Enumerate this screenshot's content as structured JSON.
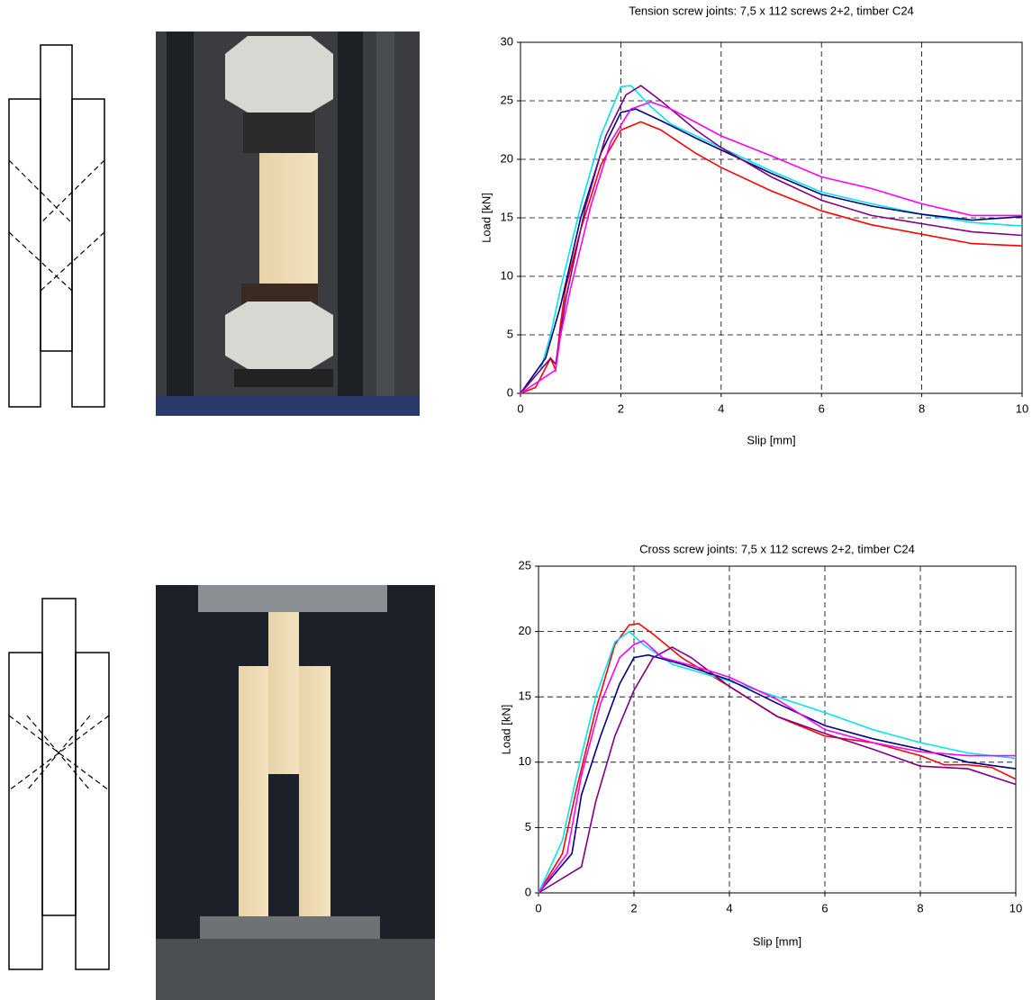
{
  "chart_data": [
    {
      "type": "line",
      "title": "Tension screw joints: 7,5 x 112 screws 2+2, timber C24",
      "x_label": "Slip [mm]",
      "y_label": "Load [kN]",
      "xlim": [
        0,
        10
      ],
      "ylim": [
        0,
        30
      ],
      "xticks": [
        0,
        2,
        4,
        6,
        8,
        10
      ],
      "yticks": [
        0,
        5,
        10,
        15,
        20,
        25,
        30
      ],
      "grid": true,
      "series": [
        {
          "color": "#ff0000",
          "x": [
            0,
            0.3,
            0.6,
            0.7,
            0.8,
            0.9,
            1.2,
            1.6,
            2,
            2.4,
            2.8,
            3.5,
            4,
            5,
            6,
            7,
            8,
            9,
            10
          ],
          "values": [
            0,
            0.5,
            3,
            2,
            6,
            9,
            14,
            19.5,
            22.5,
            23.2,
            22.5,
            20.5,
            19.3,
            17.3,
            15.6,
            14.4,
            13.6,
            12.8,
            12.6
          ]
        },
        {
          "color": "#00e5ee",
          "x": [
            0,
            0.4,
            0.6,
            0.8,
            1.2,
            1.6,
            2,
            2.2,
            2.6,
            3,
            4,
            5,
            6,
            7,
            8,
            9,
            10
          ],
          "values": [
            0,
            2,
            5,
            9,
            16,
            22,
            26.2,
            26.3,
            24.5,
            23,
            21,
            19,
            17.2,
            16.2,
            15.3,
            14.6,
            14.3
          ]
        },
        {
          "color": "#000080",
          "x": [
            0,
            0.5,
            0.8,
            1.2,
            1.6,
            2,
            2.3,
            2.8,
            3.5,
            4,
            5,
            6,
            7,
            8,
            9,
            10
          ],
          "values": [
            0,
            3,
            7.5,
            15,
            20.5,
            24,
            24.3,
            23.3,
            21.8,
            20.8,
            18.8,
            17,
            16,
            15.3,
            14.8,
            15.1
          ]
        },
        {
          "color": "#800080",
          "x": [
            0,
            0.6,
            0.7,
            0.9,
            1.3,
            1.7,
            2.1,
            2.4,
            2.8,
            3.5,
            4,
            5,
            6,
            7,
            8,
            9,
            10
          ],
          "values": [
            0,
            3,
            2.5,
            8,
            16,
            22,
            25.5,
            26.3,
            25,
            22.5,
            21,
            18.5,
            16.5,
            15.2,
            14.5,
            13.8,
            13.5
          ]
        },
        {
          "color": "#ff00ff",
          "x": [
            0,
            0.7,
            0.8,
            1,
            1.4,
            1.8,
            2.2,
            2.6,
            3,
            4,
            5,
            6,
            7,
            8,
            9,
            10
          ],
          "values": [
            0,
            2,
            5,
            9,
            16,
            21.5,
            24.3,
            24.9,
            24.3,
            22,
            20.3,
            18.5,
            17.5,
            16.2,
            15.2,
            15.2
          ]
        }
      ]
    },
    {
      "type": "line",
      "title": "Cross screw joints: 7,5 x 112 screws 2+2, timber C24",
      "x_label": "Slip [mm]",
      "y_label": "Load [kN]",
      "xlim": [
        0,
        10
      ],
      "ylim": [
        0,
        25
      ],
      "xticks": [
        0,
        2,
        4,
        6,
        8,
        10
      ],
      "yticks": [
        0,
        5,
        10,
        15,
        20,
        25
      ],
      "grid": true,
      "series": [
        {
          "color": "#ff0000",
          "x": [
            0,
            0.5,
            0.8,
            1.2,
            1.6,
            1.9,
            2.1,
            2.4,
            3,
            4,
            5,
            6,
            7,
            8,
            8.5,
            9,
            9.5,
            10
          ],
          "values": [
            0,
            3,
            8,
            14,
            19,
            20.5,
            20.6,
            19.8,
            18,
            15.8,
            13.5,
            12,
            11.5,
            10.5,
            9.8,
            9.8,
            9.6,
            8.7
          ]
        },
        {
          "color": "#00e5ee",
          "x": [
            0,
            0.5,
            0.8,
            1.2,
            1.6,
            1.9,
            2.2,
            2.8,
            4,
            5,
            6,
            7,
            8,
            9,
            10
          ],
          "values": [
            0,
            4,
            9,
            15,
            19.2,
            20,
            19,
            17.5,
            16.2,
            15,
            13.8,
            12.5,
            11.5,
            10.7,
            10.3
          ]
        },
        {
          "color": "#000080",
          "x": [
            0,
            0.7,
            0.9,
            1.3,
            1.7,
            2,
            2.3,
            3,
            4,
            5,
            6,
            7,
            8,
            9,
            10
          ],
          "values": [
            0,
            3,
            7.5,
            12,
            16,
            18,
            18.2,
            17.5,
            16.3,
            14.5,
            12.8,
            11.8,
            11,
            10,
            9.5
          ]
        },
        {
          "color": "#800080",
          "x": [
            0,
            0.9,
            1.2,
            1.6,
            2,
            2.4,
            2.8,
            3.2,
            4,
            5,
            6,
            7,
            8,
            9,
            10
          ],
          "values": [
            0,
            2,
            7,
            12,
            15.5,
            18,
            18.8,
            18,
            15.8,
            13.5,
            12.2,
            11,
            9.7,
            9.5,
            8.3
          ]
        },
        {
          "color": "#ff00ff",
          "x": [
            0,
            0.6,
            0.9,
            1.3,
            1.7,
            2,
            2.2,
            2.6,
            3.4,
            4,
            5,
            6,
            7,
            8,
            9,
            10
          ],
          "values": [
            0,
            3,
            9,
            14.5,
            18,
            19,
            19.3,
            18,
            17.2,
            16.5,
            14.8,
            12.5,
            11.5,
            10.8,
            10.5,
            10.5
          ]
        }
      ]
    }
  ]
}
